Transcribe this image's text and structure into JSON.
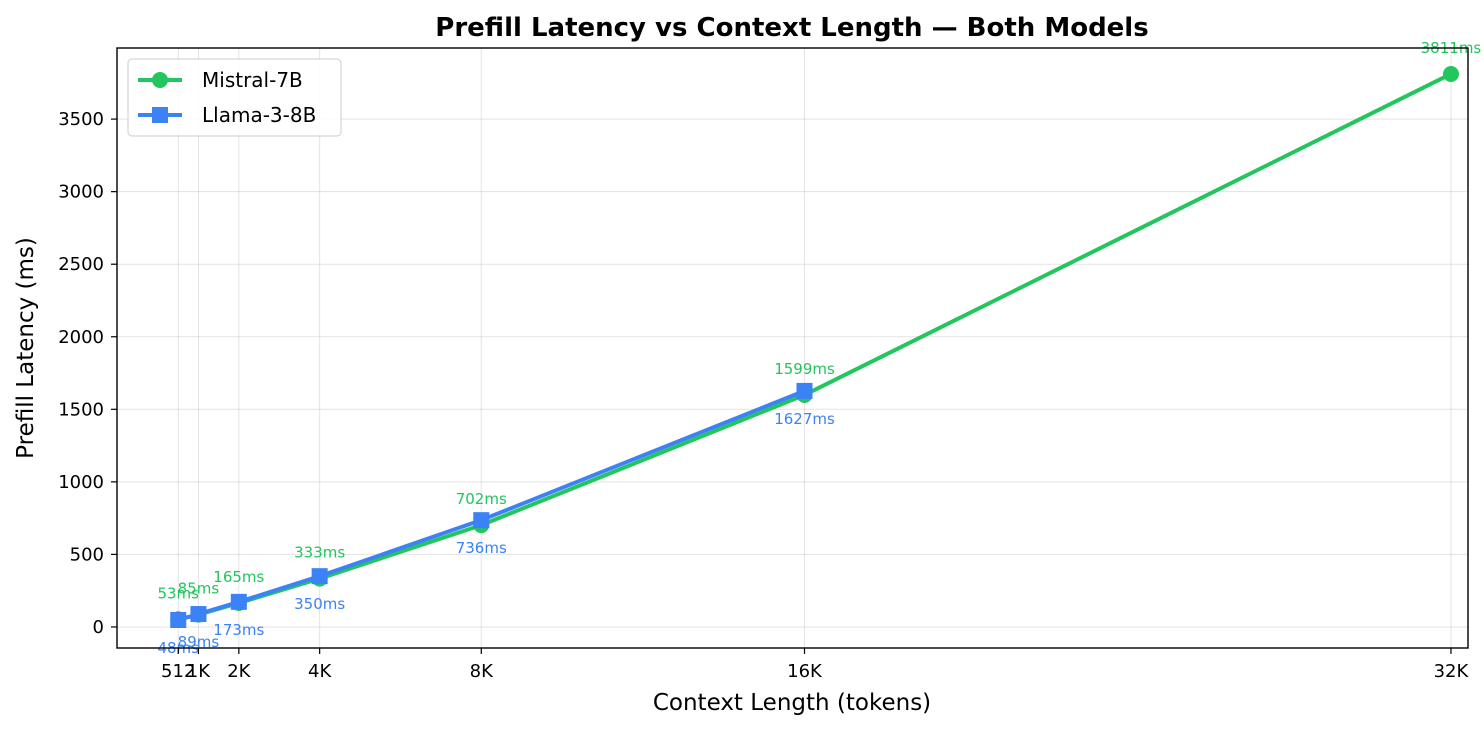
{
  "chart_data": {
    "type": "line",
    "title": "Prefill Latency vs Context Length — Both Models",
    "xlabel": "Context Length (tokens)",
    "ylabel": "Prefill Latency (ms)",
    "x": [
      512,
      1024,
      2048,
      4096,
      8192,
      16384,
      32768
    ],
    "x_tick_labels": [
      "512",
      "1K",
      "2K",
      "4K",
      "8K",
      "16K",
      "32K"
    ],
    "y_ticks": [
      0,
      500,
      1000,
      1500,
      2000,
      2500,
      3000,
      3500
    ],
    "xlim": [
      -1040,
      33200
    ],
    "ylim": [
      -145,
      3990
    ],
    "grid": true,
    "legend_position": "top-left",
    "series": [
      {
        "name": "Mistral-7B",
        "color": "#22c55e",
        "marker": "circle",
        "label_side": "above",
        "x": [
          512,
          1024,
          2048,
          4096,
          8192,
          16384,
          32768
        ],
        "values": [
          53,
          85,
          165,
          333,
          702,
          1599,
          3811
        ],
        "labels": [
          "53ms",
          "85ms",
          "165ms",
          "333ms",
          "702ms",
          "1599ms",
          "3811ms"
        ]
      },
      {
        "name": "Llama-3-8B",
        "color": "#3b82f6",
        "marker": "square",
        "label_side": "below",
        "x": [
          512,
          1024,
          2048,
          4096,
          8192,
          16384
        ],
        "values": [
          48,
          89,
          173,
          350,
          736,
          1627
        ],
        "labels": [
          "48ms",
          "89ms",
          "173ms",
          "350ms",
          "736ms",
          "1627ms"
        ]
      }
    ]
  }
}
